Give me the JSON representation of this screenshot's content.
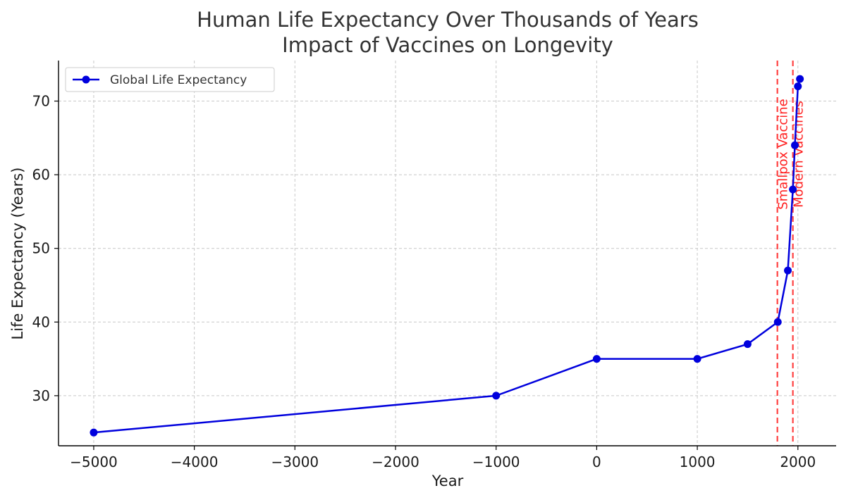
{
  "chart_data": {
    "type": "line",
    "title": "Human Life Expectancy Over Thousands of Years",
    "subtitle": "Impact of Vaccines on Longevity",
    "xlabel": "Year",
    "ylabel": "Life Expectancy (Years)",
    "xlim": [
      -5350,
      2380
    ],
    "ylim": [
      23.2,
      75.5
    ],
    "xticks": [
      -5000,
      -4000,
      -3000,
      -2000,
      -1000,
      0,
      1000,
      2000
    ],
    "xtick_labels": [
      "−5000",
      "−4000",
      "−3000",
      "−2000",
      "−1000",
      "0",
      "1000",
      "2000"
    ],
    "yticks": [
      30,
      40,
      50,
      60,
      70
    ],
    "ytick_labels": [
      "30",
      "40",
      "50",
      "60",
      "70"
    ],
    "grid": true,
    "legend_position": "top-left",
    "series": [
      {
        "name": "Global Life Expectancy",
        "color": "#0000dd",
        "marker": "circle",
        "x": [
          -5000,
          -1000,
          0,
          1000,
          1500,
          1800,
          1900,
          1950,
          1970,
          2000,
          2020
        ],
        "y": [
          25,
          30,
          35,
          35,
          37,
          40,
          47,
          58,
          64,
          72,
          73
        ]
      }
    ],
    "annotations": [
      {
        "x": 1796,
        "label": "Smallpox Vaccine",
        "color": "#ff2020",
        "style": "dashed"
      },
      {
        "x": 1950,
        "label": "Modern Vaccines",
        "color": "#ff2020",
        "style": "dashed"
      }
    ]
  }
}
